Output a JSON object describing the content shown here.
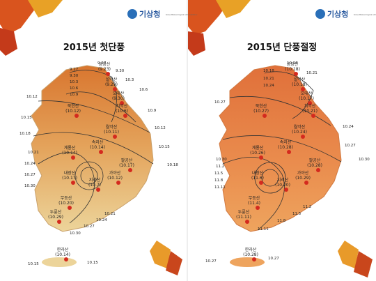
{
  "panels": [
    {
      "title": "2015년 첫단풍",
      "logo": {
        "name": "기상청",
        "subtitle": "Korea Meteorological Administration"
      },
      "mountains": [
        {
          "name": "금강산",
          "date": "(9.23)"
        },
        {
          "name": "설악산",
          "date": "(9.29)"
        },
        {
          "name": "오대산",
          "date": "(9.30)"
        },
        {
          "name": "치악산",
          "date": "(10.6)"
        },
        {
          "name": "북한산",
          "date": "(10.12)"
        },
        {
          "name": "월악산",
          "date": "(10.11)"
        },
        {
          "name": "속리산",
          "date": "(10.14)"
        },
        {
          "name": "계룡산",
          "date": "(10.14)"
        },
        {
          "name": "팔공산",
          "date": "(10.17)"
        },
        {
          "name": "가야산",
          "date": "(10.12)"
        },
        {
          "name": "내장산",
          "date": "(10.17)"
        },
        {
          "name": "지리산",
          "date": "(10.7)"
        },
        {
          "name": "무등산",
          "date": "(10.20)"
        },
        {
          "name": "두륜산",
          "date": "(10.29)"
        },
        {
          "name": "한라산",
          "date": "(10.14)"
        }
      ],
      "isolines": [
        "9.27",
        "9.27",
        "9.30",
        "9.30",
        "10.3",
        "10.6",
        "10.9",
        "10.3",
        "10.6",
        "10.9",
        "10.12",
        "10.15",
        "10.18",
        "10.12",
        "10.15",
        "10.18",
        "10.21",
        "10.24",
        "10.27",
        "10.30",
        "10.21",
        "10.24",
        "10.27",
        "10.30",
        "10.15",
        "10.15"
      ]
    },
    {
      "title": "2015년 단풍절정",
      "logo": {
        "name": "기상청",
        "subtitle": "Korea Meteorological Administration"
      },
      "mountains": [
        {
          "name": "금강산",
          "date": "(10.18)"
        },
        {
          "name": "설악산",
          "date": "(10.18)"
        },
        {
          "name": "오대산",
          "date": "(10.17)"
        },
        {
          "name": "치악산",
          "date": "(10.21)"
        },
        {
          "name": "북한산",
          "date": "(10.27)"
        },
        {
          "name": "월악산",
          "date": "(10.24)"
        },
        {
          "name": "속리산",
          "date": "(10.28)"
        },
        {
          "name": "계룡산",
          "date": "(10.26)"
        },
        {
          "name": "팔공산",
          "date": "(10.28)"
        },
        {
          "name": "가야산",
          "date": "(10.29)"
        },
        {
          "name": "내장산",
          "date": "(11.6)"
        },
        {
          "name": "지리산",
          "date": "(10.20)"
        },
        {
          "name": "무등산",
          "date": "(11.4)"
        },
        {
          "name": "두륜산",
          "date": "(11.11)"
        },
        {
          "name": "한라산",
          "date": "(10.28)"
        }
      ],
      "isolines": [
        "10.18",
        "10.21",
        "10.18",
        "10.21",
        "10.24",
        "10.27",
        "10.24",
        "10.27",
        "10.30",
        "10.30",
        "11.2",
        "11.5",
        "11.8",
        "11.11",
        "11.2",
        "11.5",
        "11.8",
        "11.11",
        "10.27",
        "10.27"
      ]
    }
  ]
}
